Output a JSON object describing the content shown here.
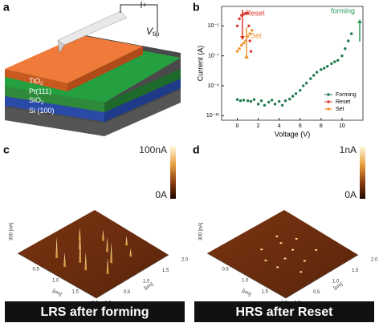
{
  "panel_labels": [
    "a",
    "b",
    "c",
    "d"
  ],
  "schematic": {
    "layers": [
      {
        "text": "TiO",
        "sub": "2"
      },
      {
        "text": "Pt(111)"
      },
      {
        "text": "SiO",
        "sub": "2"
      },
      {
        "text": "Si (100)"
      }
    ],
    "tip_label": {
      "text": "V",
      "sub": "tip"
    }
  },
  "chart_data": {
    "type": "scatter",
    "x_label": "Voltage (V)",
    "y_label": "Current (A)",
    "xlim": [
      -1.5,
      12
    ],
    "xticks": [
      0,
      2,
      4,
      6,
      8,
      10
    ],
    "ylim": [
      5e-12,
      0.0002
    ],
    "yscale": "log",
    "yticks": [
      {
        "value": 1e-05,
        "label": "10⁻⁵"
      },
      {
        "value": 1e-07,
        "label": "10⁻⁷"
      },
      {
        "value": 1e-09,
        "label": "10⁻⁹"
      },
      {
        "value": 1e-11,
        "label": "10⁻¹¹"
      }
    ],
    "legend": "lower right",
    "series": [
      {
        "name": "Forming",
        "color": "#1e7a4c",
        "x": [
          0,
          0.3,
          0.6,
          1,
          1.3,
          1.6,
          2,
          2.3,
          2.6,
          3,
          3.3,
          3.6,
          4,
          4.3,
          4.6,
          5,
          5.3,
          5.6,
          6,
          6.3,
          6.6,
          7,
          7.3,
          7.6,
          8,
          8.3,
          8.6,
          9,
          9.3,
          9.6,
          10,
          10.3,
          10.6,
          10.9
        ],
        "values": [
          1.2e-10,
          1e-10,
          1.1e-10,
          1e-10,
          9e-11,
          1.2e-10,
          6e-11,
          1e-10,
          5e-11,
          8e-11,
          1.1e-10,
          6e-11,
          9e-11,
          5e-11,
          1e-10,
          1.3e-10,
          2e-10,
          3e-10,
          5e-10,
          1e-09,
          1.5e-09,
          3e-09,
          5e-09,
          8e-09,
          1.2e-08,
          1.5e-08,
          2e-08,
          3e-08,
          4e-08,
          5e-08,
          1e-07,
          3e-07,
          1e-06,
          3e-06
        ]
      },
      {
        "name": "Reset",
        "color": "#d8392a",
        "x": [
          0,
          0.2,
          0.4,
          0.6,
          0.8,
          1.0,
          1.1,
          1.2,
          1.3
        ],
        "values": [
          1e-05,
          3e-05,
          5e-05,
          6e-05,
          7e-05,
          7e-05,
          1e-05,
          1e-06,
          2e-07
        ]
      },
      {
        "name": "Set",
        "color": "#f0902a",
        "x": [
          0,
          0.2,
          0.4,
          0.6,
          0.8,
          1.0,
          1.2,
          1.4
        ],
        "values": [
          2e-07,
          3e-07,
          5e-07,
          7e-07,
          1e-06,
          2e-06,
          3e-06,
          5e-06
        ]
      }
    ],
    "annotations": [
      {
        "text": "Reset",
        "color": "#d8392a"
      },
      {
        "text": "Set",
        "color": "#f0902a"
      },
      {
        "text": "forming",
        "color": "#2a9a5a"
      }
    ]
  },
  "maps": [
    {
      "colorbar_max": "100nA",
      "colorbar_min": "0A",
      "caption": "LRS after forming",
      "unit": "[μm]",
      "left_label": "300 [nA]",
      "x_ticks": [
        "0.0",
        "0.5",
        "1.0",
        "1.5",
        "2.0"
      ],
      "y_ticks": [
        "0.5",
        "1.0",
        "1.5",
        "2.0"
      ]
    },
    {
      "colorbar_max": "1nA",
      "colorbar_min": "0A",
      "caption": "HRS after Reset",
      "unit": "[μm]",
      "left_label": "300 [nA]",
      "x_ticks": [
        "0.0",
        "0.5",
        "1.0",
        "1.5",
        "2.0"
      ],
      "y_ticks": [
        "0.5",
        "1.0",
        "1.5",
        "2.0"
      ]
    }
  ]
}
